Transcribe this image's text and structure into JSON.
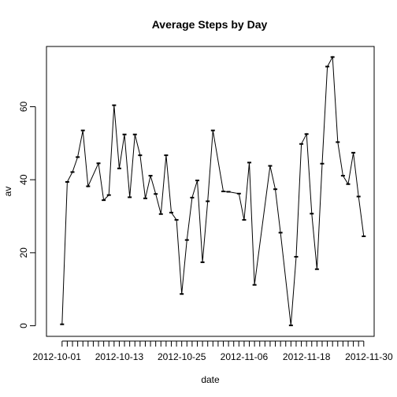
{
  "chart_data": {
    "type": "line",
    "title": "Average Steps by Day",
    "xlabel": "date",
    "ylabel": "av",
    "x_start": "2012-10-02",
    "x": [
      "2012-10-02",
      "2012-10-03",
      "2012-10-04",
      "2012-10-05",
      "2012-10-06",
      "2012-10-07",
      "2012-10-09",
      "2012-10-10",
      "2012-10-11",
      "2012-10-12",
      "2012-10-13",
      "2012-10-14",
      "2012-10-15",
      "2012-10-16",
      "2012-10-17",
      "2012-10-18",
      "2012-10-19",
      "2012-10-20",
      "2012-10-21",
      "2012-10-22",
      "2012-10-23",
      "2012-10-24",
      "2012-10-25",
      "2012-10-26",
      "2012-10-27",
      "2012-10-28",
      "2012-10-29",
      "2012-10-30",
      "2012-10-31",
      "2012-11-02",
      "2012-11-03",
      "2012-11-05",
      "2012-11-06",
      "2012-11-07",
      "2012-11-08",
      "2012-11-11",
      "2012-11-12",
      "2012-11-13",
      "2012-11-15",
      "2012-11-16",
      "2012-11-17",
      "2012-11-18",
      "2012-11-19",
      "2012-11-20",
      "2012-11-21",
      "2012-11-22",
      "2012-11-23",
      "2012-11-24",
      "2012-11-25",
      "2012-11-26",
      "2012-11-27",
      "2012-11-28",
      "2012-11-29"
    ],
    "series": [
      {
        "values": [
          0.4,
          39.4,
          42.1,
          46.2,
          53.5,
          38.2,
          44.5,
          34.4,
          35.8,
          60.4,
          43.1,
          52.4,
          35.2,
          52.4,
          46.7,
          34.9,
          41.1,
          36.1,
          30.6,
          46.7,
          31.0,
          29.0,
          8.7,
          23.5,
          35.1,
          39.8,
          17.4,
          34.1,
          53.5,
          36.8,
          36.7,
          36.2,
          29.0,
          44.7,
          11.2,
          43.8,
          37.4,
          25.5,
          0.1,
          18.9,
          49.8,
          52.5,
          30.7,
          15.5,
          44.4,
          71.0,
          73.6,
          50.3,
          41.1,
          38.8,
          47.4,
          35.4,
          24.5
        ]
      }
    ],
    "x_tick_labels": [
      "2012-10-01",
      "2012-10-13",
      "2012-10-25",
      "2012-11-06",
      "2012-11-18",
      "2012-11-30"
    ],
    "x_tick_dates": [
      "2012-10-01",
      "2012-10-13",
      "2012-10-25",
      "2012-11-06",
      "2012-11-18",
      "2012-11-30"
    ],
    "y_ticks": [
      0,
      20,
      40,
      60
    ],
    "xlim": [
      "2012-09-29",
      "2012-12-01"
    ],
    "ylim": [
      -2.9,
      76.5
    ],
    "grid": false,
    "legend": "none"
  }
}
